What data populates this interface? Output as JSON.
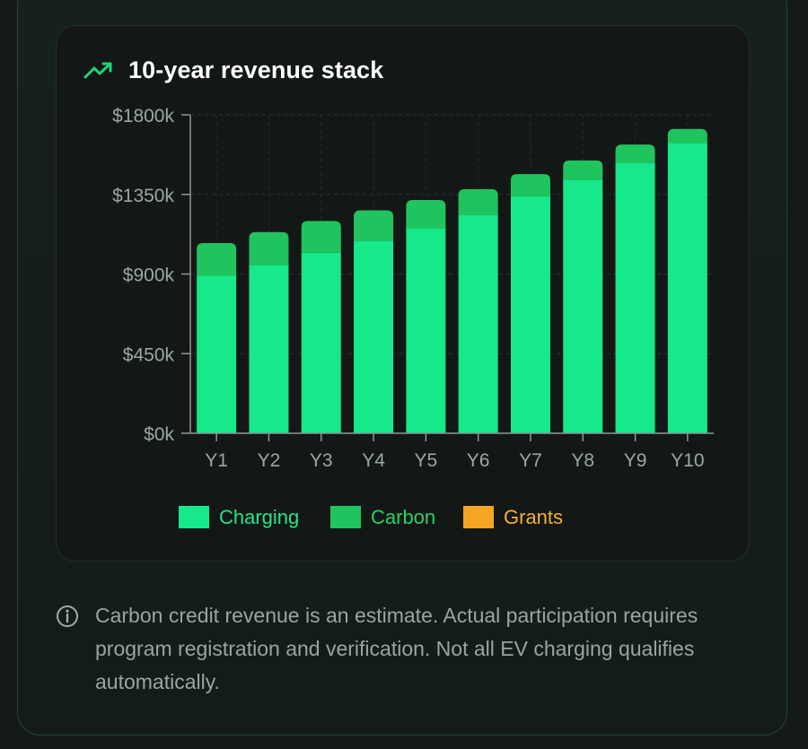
{
  "card": {
    "title": "10-year revenue stack",
    "icon": "trending-up-icon"
  },
  "chart_data": {
    "type": "bar",
    "stacked": true,
    "title": "10-year revenue stack",
    "categories": [
      "Y1",
      "Y2",
      "Y3",
      "Y4",
      "Y5",
      "Y6",
      "Y7",
      "Y8",
      "Y9",
      "Y10"
    ],
    "series": [
      {
        "name": "Charging",
        "color": "#17e889",
        "values": [
          890,
          952,
          1020,
          1088,
          1160,
          1235,
          1340,
          1430,
          1530,
          1640
        ]
      },
      {
        "name": "Carbon",
        "color": "#1fc45f",
        "values": [
          185,
          185,
          180,
          172,
          158,
          145,
          125,
          112,
          102,
          80
        ]
      },
      {
        "name": "Grants",
        "color": "#f5a524",
        "values": [
          0,
          0,
          0,
          0,
          0,
          0,
          0,
          0,
          0,
          0
        ]
      }
    ],
    "yticks": [
      "$0k",
      "$450k",
      "$900k",
      "$1350k",
      "$1800k"
    ],
    "ylim": [
      0,
      1800
    ],
    "grid": true,
    "legend": "bottom",
    "legend_label_colors": {
      "Charging": "#26e38a",
      "Carbon": "#2fcf66",
      "Grants": "#f6ae34"
    }
  },
  "note": {
    "icon": "info-icon",
    "text": "Carbon credit revenue is an estimate. Actual participation requires program registration and verification. Not all EV charging qualifies automatically."
  }
}
